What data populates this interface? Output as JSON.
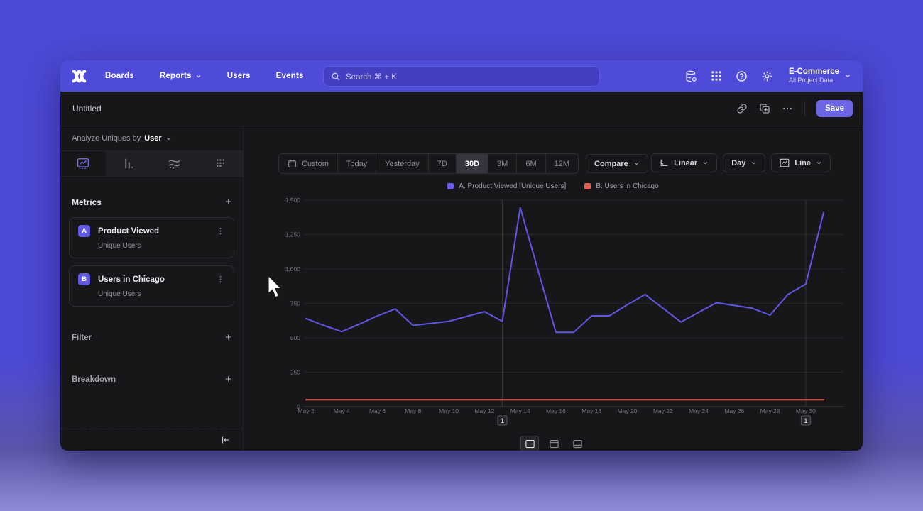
{
  "app": {
    "navbar": {
      "brand": "mixpanel",
      "items": [
        {
          "label": "Boards"
        },
        {
          "label": "Reports"
        },
        {
          "label": "Users"
        },
        {
          "label": "Events"
        }
      ],
      "search": {
        "placeholder": "Search  ⌘ + K"
      },
      "project": {
        "name": "E-Commerce",
        "subtitle": "All Project Data"
      }
    },
    "toolbar": {
      "title": "Untitled",
      "save_label": "Save"
    },
    "sidebar": {
      "analyze_prefix": "Analyze Uniques by",
      "analyze_value": "User",
      "metrics_title": "Metrics",
      "filter_title": "Filter",
      "breakdown_title": "Breakdown",
      "metrics": [
        {
          "badge": "A",
          "title": "Product Viewed",
          "subtitle": "Unique Users"
        },
        {
          "badge": "B",
          "title": "Users in Chicago",
          "subtitle": "Unique Users"
        }
      ]
    },
    "controls": {
      "date_ranges": [
        "Custom",
        "Today",
        "Yesterday",
        "7D",
        "30D",
        "3M",
        "6M",
        "12M"
      ],
      "selected_range": "30D",
      "compare_label": "Compare",
      "scale_label": "Linear",
      "granularity_label": "Day",
      "chart_type_label": "Line"
    },
    "legend": [
      {
        "label": "A. Product Viewed [Unique Users]",
        "color": "#6a5ce8"
      },
      {
        "label": "B. Users in Chicago",
        "color": "#e0614f"
      }
    ],
    "icons": [
      "search-icon",
      "data-settings-icon",
      "apps-grid-icon",
      "help-icon",
      "gear-icon",
      "link-icon",
      "duplicate-icon",
      "ellipsis-icon",
      "calendar-icon",
      "chevron-down-icon",
      "plus-icon",
      "kebab-icon",
      "collapse-sidebar-icon",
      "linear-scale-icon",
      "line-chart-icon",
      "layout-split-icon",
      "layout-chart-icon",
      "layout-table-icon"
    ]
  },
  "chart_data": {
    "type": "line",
    "title": "",
    "xlabel": "",
    "ylabel": "",
    "x": [
      "May 2",
      "May 3",
      "May 4",
      "May 5",
      "May 6",
      "May 7",
      "May 8",
      "May 9",
      "May 10",
      "May 11",
      "May 12",
      "May 13",
      "May 14",
      "May 15",
      "May 16",
      "May 17",
      "May 18",
      "May 19",
      "May 20",
      "May 21",
      "May 22",
      "May 23",
      "May 24",
      "May 25",
      "May 26",
      "May 27",
      "May 28",
      "May 29",
      "May 30",
      "May 31"
    ],
    "x_tick_every": 2,
    "ylim": [
      0,
      1500
    ],
    "yticks": [
      0,
      250,
      500,
      750,
      1000,
      1250,
      1500
    ],
    "grid": true,
    "legend_position": "top-center",
    "series": [
      {
        "name": "A. Product Viewed [Unique Users]",
        "color": "#6156e2",
        "values": [
          640,
          590,
          545,
          600,
          660,
          710,
          590,
          605,
          620,
          655,
          690,
          620,
          1445,
          990,
          540,
          540,
          660,
          660,
          740,
          815,
          715,
          615,
          685,
          755,
          735,
          715,
          665,
          815,
          890,
          1410
        ]
      },
      {
        "name": "B. Users in Chicago",
        "color": "#e0614f",
        "values": [
          50,
          50,
          50,
          50,
          50,
          50,
          50,
          50,
          50,
          50,
          50,
          50,
          50,
          50,
          50,
          50,
          50,
          50,
          50,
          50,
          50,
          50,
          50,
          50,
          50,
          50,
          50,
          50,
          50,
          50
        ]
      }
    ],
    "annotations": [
      {
        "x": "May 13",
        "label": "1"
      },
      {
        "x": "May 30",
        "label": "1"
      }
    ]
  }
}
